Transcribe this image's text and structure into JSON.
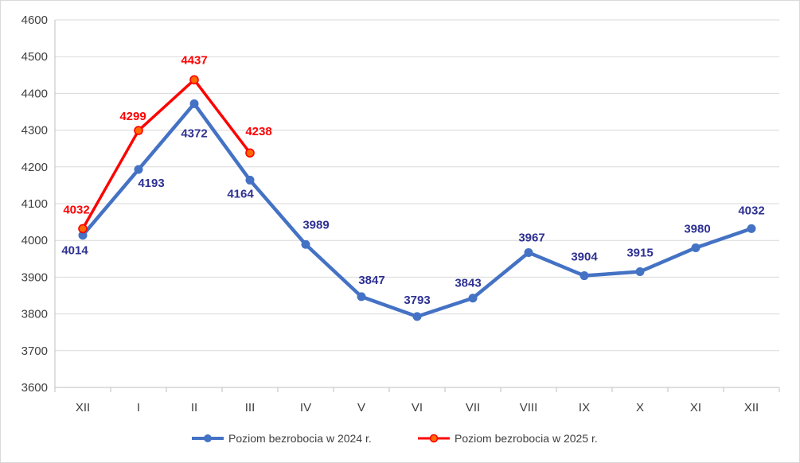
{
  "chart_data": {
    "type": "line",
    "title": "",
    "xlabel": "",
    "ylabel": "",
    "categories": [
      "XII",
      "I",
      "II",
      "III",
      "IV",
      "V",
      "VI",
      "VII",
      "VIII",
      "IX",
      "X",
      "XI",
      "XII"
    ],
    "ylim": [
      3600,
      4600
    ],
    "yticks": [
      3600,
      3700,
      3800,
      3900,
      4000,
      4100,
      4200,
      4300,
      4400,
      4500,
      4600
    ],
    "grid": "horizontal",
    "legend_position": "bottom",
    "series": [
      {
        "name": "Poziom bezrobocia w 2024 r.",
        "color": "#4472c4",
        "label_color": "#2e3192",
        "values": [
          4014,
          4193,
          4372,
          4164,
          3989,
          3847,
          3793,
          3843,
          3967,
          3904,
          3915,
          3980,
          4032
        ]
      },
      {
        "name": "Poziom bezrobocia w 2025 r.",
        "color": "#ff0000",
        "marker_color": "#ff6a00",
        "label_color": "#ff0000",
        "values": [
          4032,
          4299,
          4437,
          4238,
          null,
          null,
          null,
          null,
          null,
          null,
          null,
          null,
          null
        ]
      }
    ]
  }
}
